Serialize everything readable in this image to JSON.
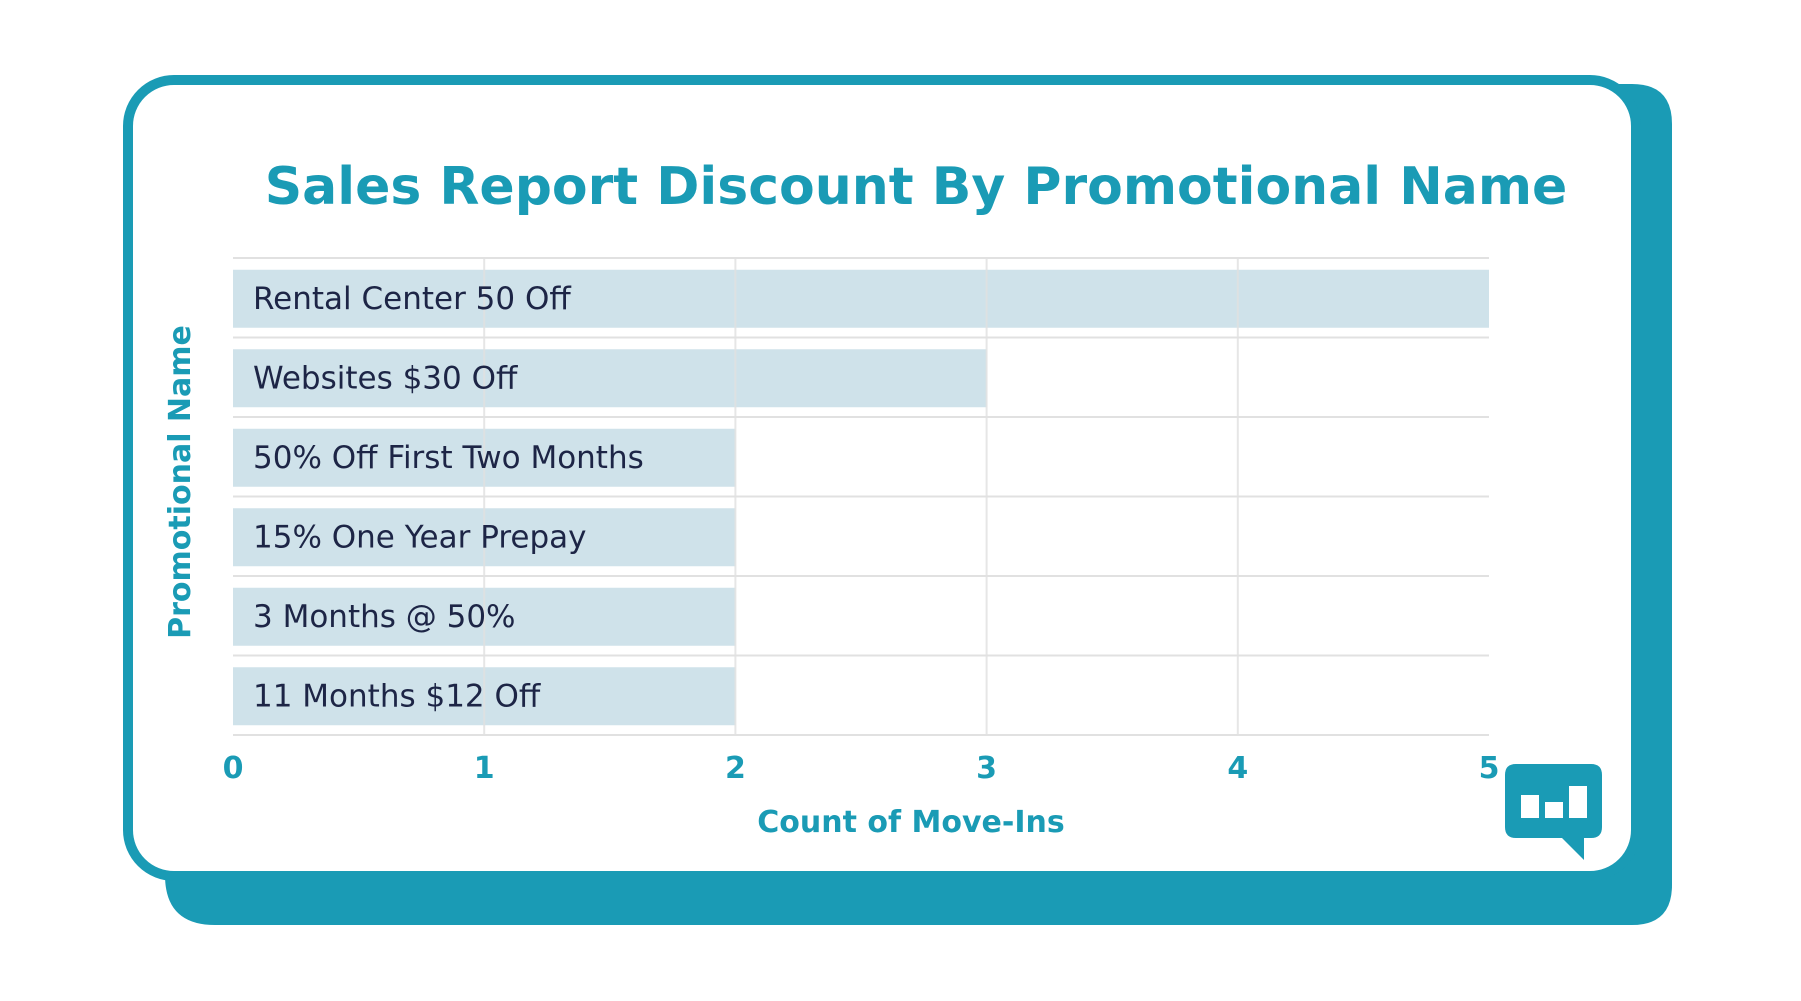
{
  "colors": {
    "accent": "#1a9bb5",
    "bar": "#cfe2ea",
    "label_text": "#1d2546",
    "grid": "#e1e1e1",
    "card": "#ffffff"
  },
  "logo": {
    "icon": "bar-chart-speech-bubble-icon"
  },
  "chart_data": {
    "type": "bar",
    "orientation": "horizontal",
    "title": "Sales Report Discount By Promotional Name",
    "xlabel": "Count of Move-Ins",
    "ylabel": "Promotional Name",
    "categories": [
      "Rental Center 50 Off",
      "Websites $30 Off",
      "50% Off First Two Months",
      "15% One Year Prepay",
      "3 Months @ 50%",
      "11 Months $12 Off"
    ],
    "values": [
      5,
      3,
      2,
      2,
      2,
      2
    ],
    "xlim": [
      0,
      5
    ],
    "xticks": [
      "0",
      "1",
      "2",
      "3",
      "4",
      "5"
    ],
    "grid": true,
    "legend": "none"
  }
}
